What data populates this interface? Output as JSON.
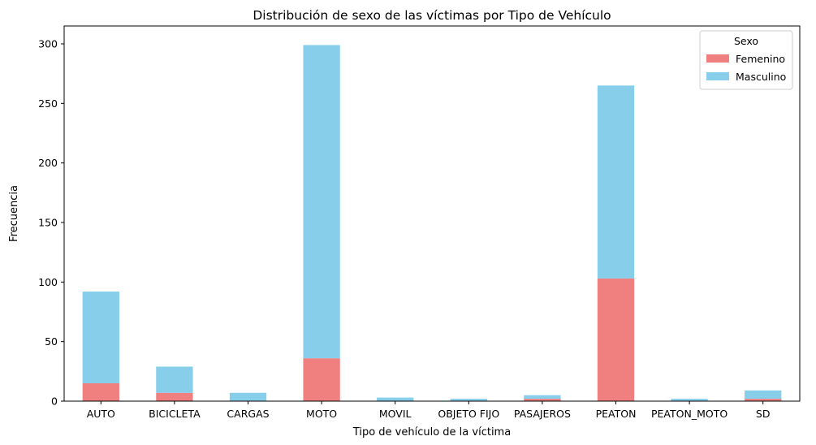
{
  "chart_data": {
    "type": "bar",
    "stacked": true,
    "title": "Distribución de sexo de las víctimas por Tipo de Vehículo",
    "xlabel": "Tipo de vehículo de la víctima",
    "ylabel": "Frecuencia",
    "categories": [
      "AUTO",
      "BICICLETA",
      "CARGAS",
      "MOTO",
      "MOVIL",
      "OBJETO FIJO",
      "PASAJEROS",
      "PEATON",
      "PEATON_MOTO",
      "SD"
    ],
    "series": [
      {
        "name": "Femenino",
        "color": "#f08080",
        "values": [
          15,
          7,
          0,
          36,
          0,
          0,
          2,
          103,
          0,
          2
        ]
      },
      {
        "name": "Masculino",
        "color": "#87ceeb",
        "values": [
          77,
          22,
          7,
          263,
          3,
          2,
          3,
          162,
          2,
          7
        ]
      }
    ],
    "ylim": [
      0,
      315
    ],
    "yticks": [
      0,
      50,
      100,
      150,
      200,
      250,
      300
    ],
    "legend": {
      "title": "Sexo",
      "placement": "top-right"
    },
    "grid": false
  }
}
